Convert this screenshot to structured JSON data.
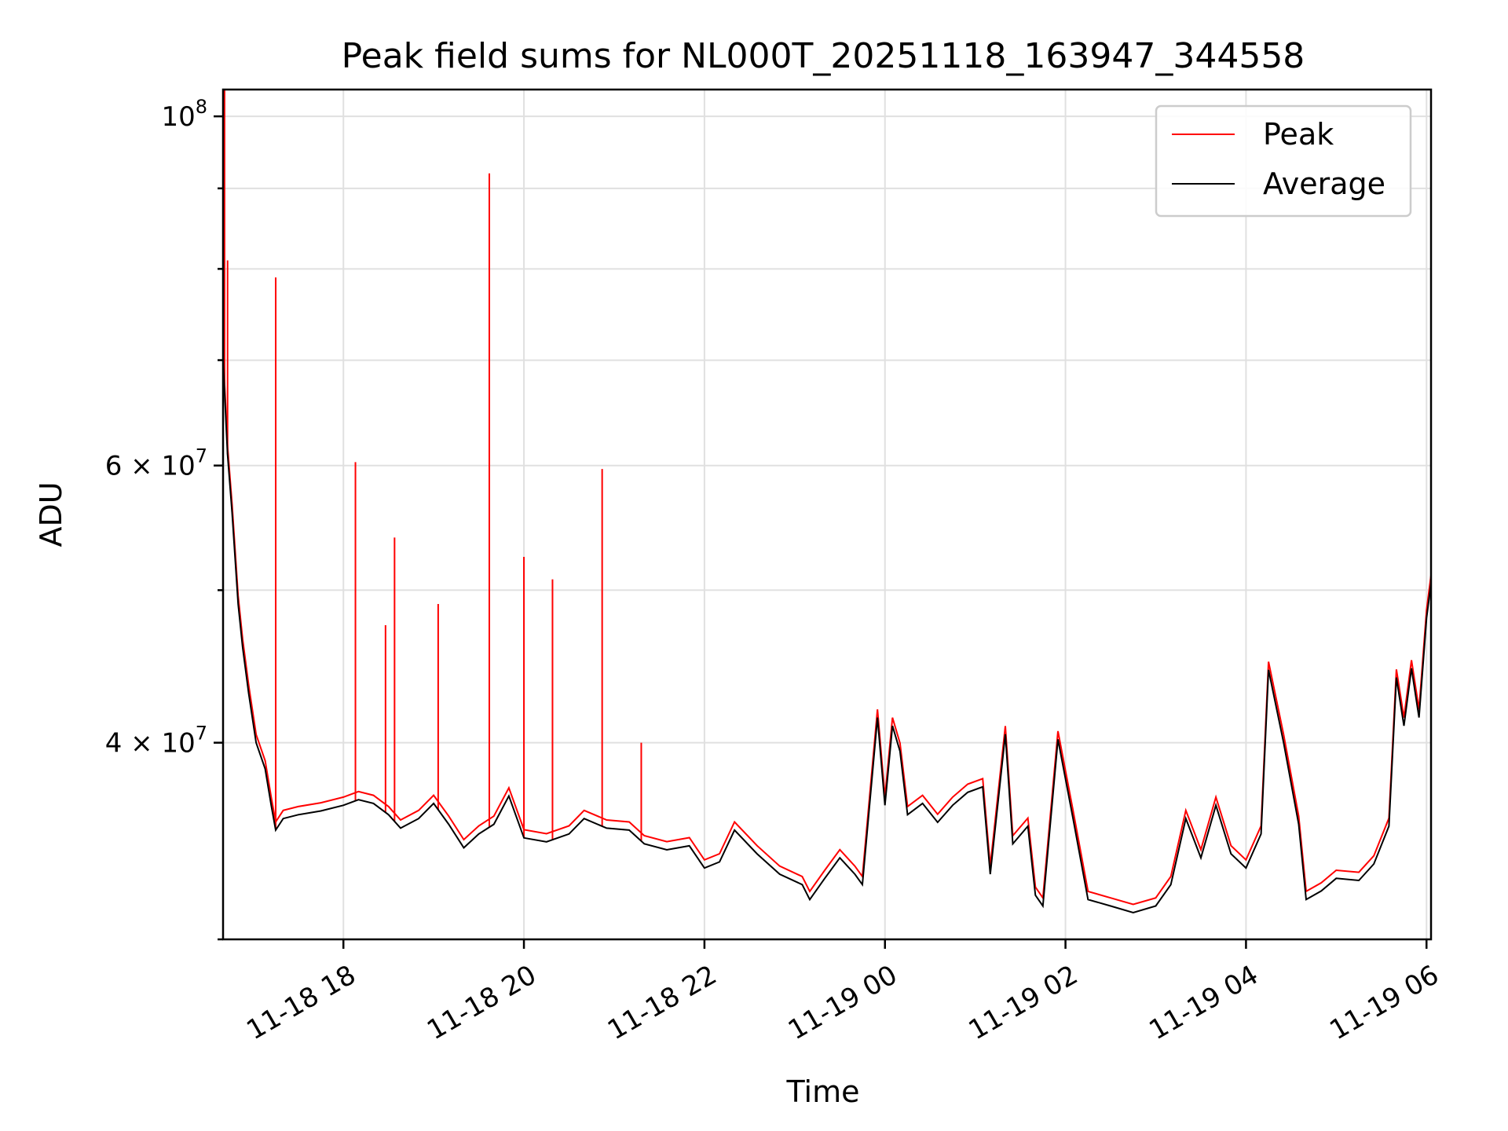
{
  "chart_data": {
    "type": "line",
    "title": "Peak field sums for NL000T_20251118_163947_344558",
    "xlabel": "Time",
    "ylabel": "ADU",
    "y_scale": "log",
    "ylim": [
      30000000,
      104000000
    ],
    "xlim": [
      "2025-11-18 16:40",
      "2025-11-19 06:03"
    ],
    "grid": true,
    "legend_position": "top-right",
    "x_ticks": [
      {
        "value": "2025-11-18 18:00",
        "label": "11-18 18"
      },
      {
        "value": "2025-11-18 20:00",
        "label": "11-18 20"
      },
      {
        "value": "2025-11-18 22:00",
        "label": "11-18 22"
      },
      {
        "value": "2025-11-19 00:00",
        "label": "11-19 00"
      },
      {
        "value": "2025-11-19 02:00",
        "label": "11-19 02"
      },
      {
        "value": "2025-11-19 04:00",
        "label": "11-19 04"
      },
      {
        "value": "2025-11-19 06:00",
        "label": "11-19 06"
      }
    ],
    "y_ticks": [
      {
        "value": 100000000,
        "base": "10",
        "exp": "8",
        "label": "10^8"
      },
      {
        "value": 60000000,
        "mantissa": "6",
        "base": "10",
        "exp": "7",
        "label": "6×10^7"
      },
      {
        "value": 40000000,
        "mantissa": "4",
        "base": "10",
        "exp": "7",
        "label": "4×10^7"
      }
    ],
    "y_minor_ticks": [
      90000000,
      80000000,
      70000000,
      50000000,
      30000000
    ],
    "series": [
      {
        "name": "Average",
        "color": "#000000",
        "points": [
          [
            "2025-11-18 16:40",
            70000000
          ],
          [
            "2025-11-18 16:43",
            61000000
          ],
          [
            "2025-11-18 16:46",
            56000000
          ],
          [
            "2025-11-18 16:50",
            49000000
          ],
          [
            "2025-11-18 16:53",
            46000000
          ],
          [
            "2025-11-18 16:57",
            43000000
          ],
          [
            "2025-11-18 17:02",
            40000000
          ],
          [
            "2025-11-18 17:08",
            38500000
          ],
          [
            "2025-11-18 17:12",
            36500000
          ],
          [
            "2025-11-18 17:15",
            35200000
          ],
          [
            "2025-11-18 17:20",
            35800000
          ],
          [
            "2025-11-18 17:30",
            36000000
          ],
          [
            "2025-11-18 17:45",
            36200000
          ],
          [
            "2025-11-18 18:00",
            36500000
          ],
          [
            "2025-11-18 18:10",
            36800000
          ],
          [
            "2025-11-18 18:20",
            36600000
          ],
          [
            "2025-11-18 18:30",
            36000000
          ],
          [
            "2025-11-18 18:38",
            35300000
          ],
          [
            "2025-11-18 18:50",
            35800000
          ],
          [
            "2025-11-18 19:00",
            36600000
          ],
          [
            "2025-11-18 19:10",
            35500000
          ],
          [
            "2025-11-18 19:20",
            34300000
          ],
          [
            "2025-11-18 19:30",
            35000000
          ],
          [
            "2025-11-18 19:40",
            35500000
          ],
          [
            "2025-11-18 19:50",
            37000000
          ],
          [
            "2025-11-18 20:00",
            34800000
          ],
          [
            "2025-11-18 20:15",
            34600000
          ],
          [
            "2025-11-18 20:30",
            35000000
          ],
          [
            "2025-11-18 20:40",
            35800000
          ],
          [
            "2025-11-18 20:55",
            35300000
          ],
          [
            "2025-11-18 21:10",
            35200000
          ],
          [
            "2025-11-18 21:20",
            34500000
          ],
          [
            "2025-11-18 21:35",
            34200000
          ],
          [
            "2025-11-18 21:50",
            34400000
          ],
          [
            "2025-11-18 22:00",
            33300000
          ],
          [
            "2025-11-18 22:10",
            33600000
          ],
          [
            "2025-11-18 22:20",
            35200000
          ],
          [
            "2025-11-18 22:35",
            34000000
          ],
          [
            "2025-11-18 22:50",
            33000000
          ],
          [
            "2025-11-18 23:05",
            32500000
          ],
          [
            "2025-11-18 23:10",
            31800000
          ],
          [
            "2025-11-18 23:20",
            32800000
          ],
          [
            "2025-11-18 23:30",
            33800000
          ],
          [
            "2025-11-18 23:40",
            33000000
          ],
          [
            "2025-11-18 23:45",
            32500000
          ],
          [
            "2025-11-18 23:55",
            41500000
          ],
          [
            "2025-11-19 00:00",
            36500000
          ],
          [
            "2025-11-19 00:05",
            41000000
          ],
          [
            "2025-11-19 00:10",
            39500000
          ],
          [
            "2025-11-19 00:15",
            36000000
          ],
          [
            "2025-11-19 00:25",
            36600000
          ],
          [
            "2025-11-19 00:35",
            35600000
          ],
          [
            "2025-11-19 00:45",
            36500000
          ],
          [
            "2025-11-19 00:55",
            37200000
          ],
          [
            "2025-11-19 01:05",
            37500000
          ],
          [
            "2025-11-19 01:10",
            33000000
          ],
          [
            "2025-11-19 01:20",
            40500000
          ],
          [
            "2025-11-19 01:25",
            34500000
          ],
          [
            "2025-11-19 01:35",
            35400000
          ],
          [
            "2025-11-19 01:40",
            32000000
          ],
          [
            "2025-11-19 01:45",
            31500000
          ],
          [
            "2025-11-19 01:55",
            40200000
          ],
          [
            "2025-11-19 02:05",
            35800000
          ],
          [
            "2025-11-19 02:15",
            31800000
          ],
          [
            "2025-11-19 02:30",
            31500000
          ],
          [
            "2025-11-19 02:45",
            31200000
          ],
          [
            "2025-11-19 03:00",
            31500000
          ],
          [
            "2025-11-19 03:10",
            32500000
          ],
          [
            "2025-11-19 03:20",
            35800000
          ],
          [
            "2025-11-19 03:30",
            33800000
          ],
          [
            "2025-11-19 03:40",
            36500000
          ],
          [
            "2025-11-19 03:50",
            34000000
          ],
          [
            "2025-11-19 04:00",
            33300000
          ],
          [
            "2025-11-19 04:10",
            35000000
          ],
          [
            "2025-11-19 04:15",
            44500000
          ],
          [
            "2025-11-19 04:25",
            40000000
          ],
          [
            "2025-11-19 04:35",
            35500000
          ],
          [
            "2025-11-19 04:40",
            31800000
          ],
          [
            "2025-11-19 04:50",
            32200000
          ],
          [
            "2025-11-19 05:00",
            32800000
          ],
          [
            "2025-11-19 05:15",
            32700000
          ],
          [
            "2025-11-19 05:25",
            33500000
          ],
          [
            "2025-11-19 05:35",
            35400000
          ],
          [
            "2025-11-19 05:40",
            44000000
          ],
          [
            "2025-11-19 05:45",
            41000000
          ],
          [
            "2025-11-19 05:50",
            44600000
          ],
          [
            "2025-11-19 05:55",
            41500000
          ],
          [
            "2025-11-19 06:00",
            48000000
          ],
          [
            "2025-11-19 06:03",
            50500000
          ]
        ]
      },
      {
        "name": "Peak",
        "color": "#ff0000",
        "spikes": [
          [
            "2025-11-18 16:41",
            104000000
          ],
          [
            "2025-11-18 16:43",
            81000000
          ],
          [
            "2025-11-18 17:15",
            79000000
          ],
          [
            "2025-11-18 18:08",
            60300000
          ],
          [
            "2025-11-18 18:28",
            47500000
          ],
          [
            "2025-11-18 18:34",
            54000000
          ],
          [
            "2025-11-18 19:03",
            49000000
          ],
          [
            "2025-11-18 19:37",
            92000000
          ],
          [
            "2025-11-18 20:00",
            52500000
          ],
          [
            "2025-11-18 20:19",
            50800000
          ],
          [
            "2025-11-18 20:52",
            59700000
          ],
          [
            "2025-11-18 21:18",
            40000000
          ]
        ]
      }
    ]
  }
}
